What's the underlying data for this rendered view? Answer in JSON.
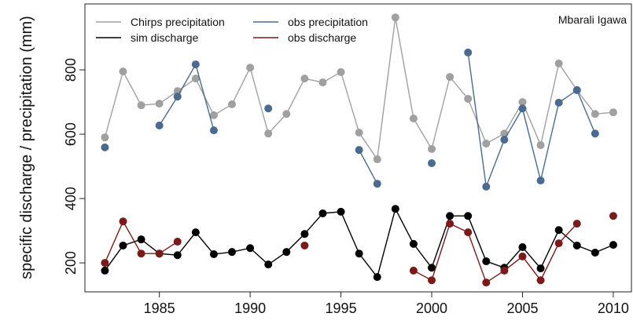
{
  "chart_data": {
    "type": "line",
    "ylabel": "specific discharge / precipitation (mm)",
    "annotation": "Mbarali Igawa",
    "x": [
      1982,
      1983,
      1984,
      1985,
      1986,
      1987,
      1988,
      1989,
      1990,
      1991,
      1992,
      1993,
      1994,
      1995,
      1996,
      1997,
      1998,
      1999,
      2000,
      2001,
      2002,
      2003,
      2004,
      2005,
      2006,
      2007,
      2008,
      2009,
      2010
    ],
    "xlim": [
      1980.9,
      2011
    ],
    "xticks": [
      1985,
      1990,
      1995,
      2000,
      2005,
      2010
    ],
    "ylim": [
      110,
      1005
    ],
    "yticks": [
      200,
      400,
      600,
      800
    ],
    "legend": "upper left",
    "series": [
      {
        "name": "Chirps precipitation",
        "color": "#a0a0a0",
        "values": [
          590,
          795,
          690,
          695,
          734,
          773,
          659,
          693,
          807,
          602,
          663,
          773,
          761,
          793,
          605,
          522,
          963,
          649,
          554,
          778,
          710,
          571,
          602,
          700,
          566,
          820,
          737,
          663,
          668
        ]
      },
      {
        "name": "obs precipitation",
        "color": "#4a6a90",
        "values": [
          559,
          null,
          null,
          627,
          717,
          817,
          612,
          null,
          null,
          680,
          null,
          null,
          null,
          null,
          551,
          446,
          null,
          null,
          510,
          null,
          854,
          437,
          583,
          680,
          456,
          698,
          737,
          602,
          null
        ]
      },
      {
        "name": "sim discharge",
        "color": "#000000",
        "values": [
          176,
          254,
          273,
          229,
          224,
          295,
          227,
          234,
          246,
          195,
          234,
          290,
          354,
          359,
          229,
          156,
          368,
          259,
          185,
          346,
          346,
          205,
          185,
          249,
          183,
          302,
          254,
          232,
          256
        ]
      },
      {
        "name": "obs discharge",
        "color": "#7a1a1a",
        "values": [
          200,
          329,
          229,
          229,
          266,
          null,
          null,
          null,
          null,
          null,
          null,
          254,
          null,
          null,
          null,
          null,
          null,
          176,
          146,
          322,
          295,
          139,
          176,
          220,
          146,
          261,
          322,
          null,
          346
        ]
      }
    ]
  }
}
